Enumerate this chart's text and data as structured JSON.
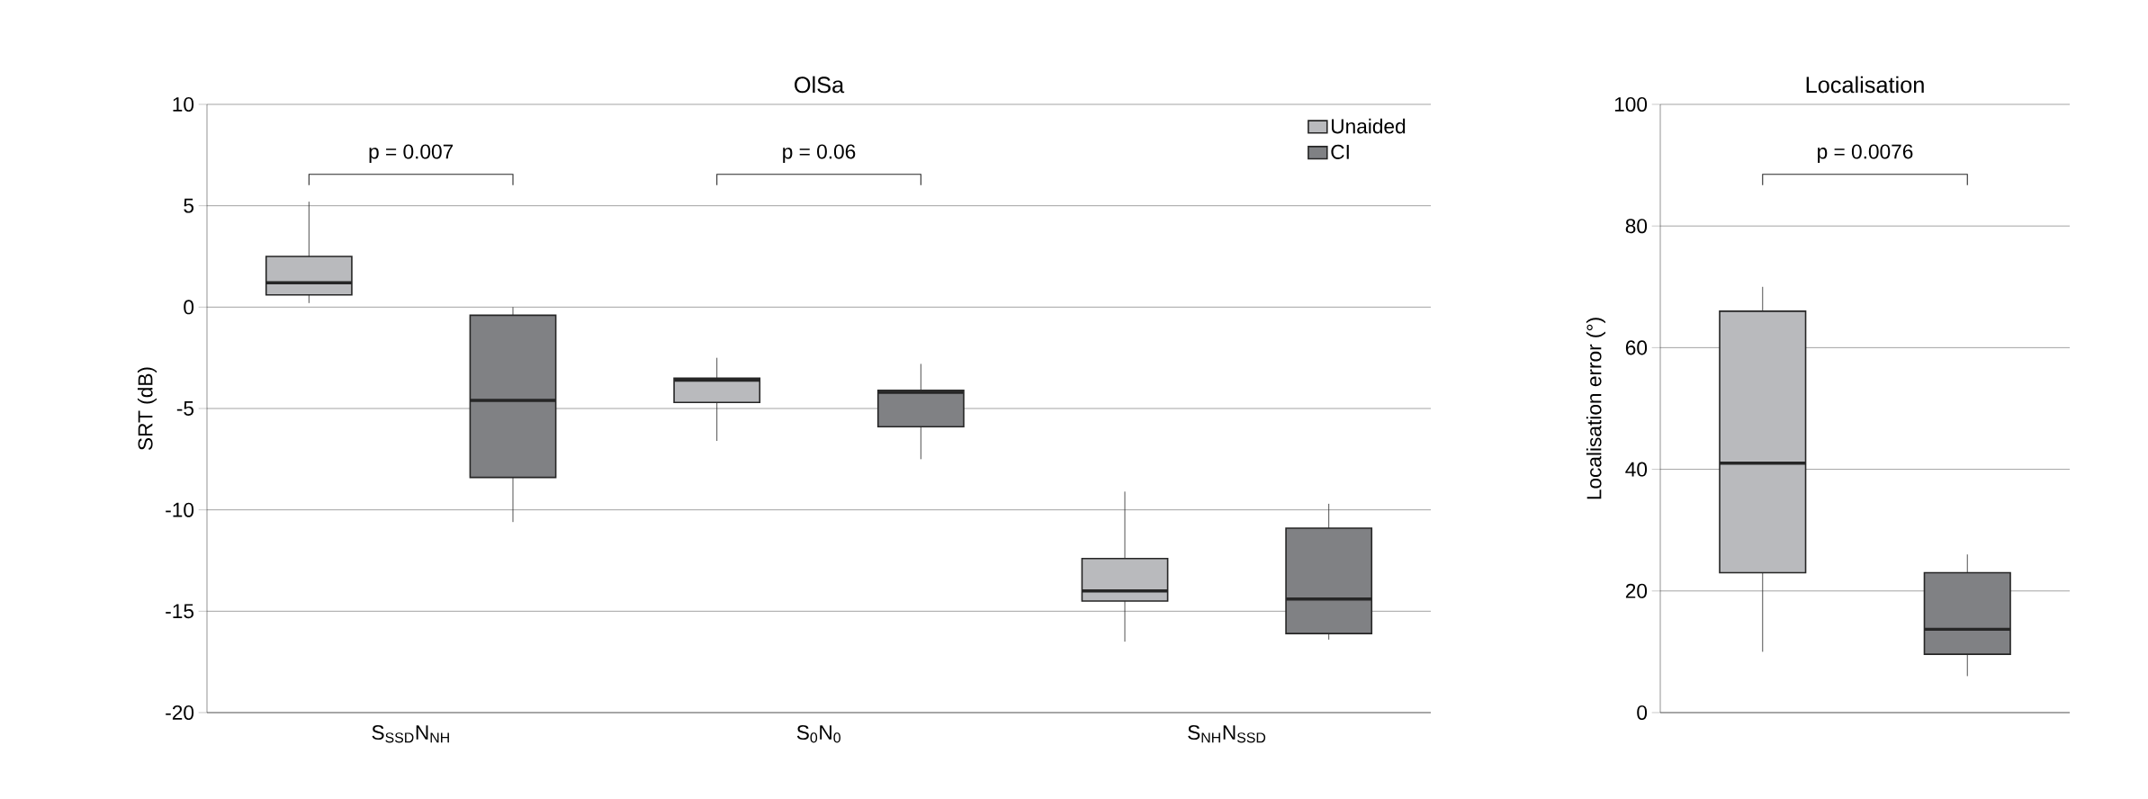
{
  "chart_data": [
    {
      "type": "box",
      "title": "OlSa",
      "ylabel": "SRT (dB)",
      "categories": [
        "S$_{SSD}$N$_{NH}$",
        "S$_{0}$N$_{0}$",
        "S$_{NH}$N$_{SSD}$"
      ],
      "series": [
        {
          "name": "Unaided",
          "color": "#b9babd",
          "boxes": [
            {
              "low": 0.2,
              "q1": 0.6,
              "median": 1.2,
              "q3": 2.5,
              "high": 5.2
            },
            {
              "low": -6.6,
              "q1": -4.7,
              "median": -3.6,
              "q3": -3.5,
              "high": -2.5
            },
            {
              "low": -16.5,
              "q1": -14.5,
              "median": -14,
              "q3": -12.4,
              "high": -9.1
            }
          ]
        },
        {
          "name": "CI",
          "color": "#808184",
          "boxes": [
            {
              "low": -10.6,
              "q1": -8.4,
              "median": -4.6,
              "q3": -0.4,
              "high": 0
            },
            {
              "low": -7.5,
              "q1": -5.9,
              "median": -4.2,
              "q3": -4.1,
              "high": -2.8
            },
            {
              "low": -16.4,
              "q1": -16.1,
              "median": -14.4,
              "q3": -10.9,
              "high": -9.7
            }
          ]
        }
      ],
      "ylim": [
        -20,
        10
      ],
      "yticks": [
        -20,
        -15,
        -10,
        -5,
        0,
        5,
        10
      ],
      "grid": "y",
      "legend": "top right",
      "annotations": [
        "p = 0.007",
        "p = 0.06"
      ]
    },
    {
      "type": "box",
      "title": "Localisation",
      "ylabel": "Localisation error (°)",
      "categories": [
        null
      ],
      "series": [
        {
          "color": "#b9babd",
          "boxes": [
            {
              "low": 10,
              "q1": 23,
              "median": 41,
              "q3": 66,
              "high": 70
            }
          ]
        },
        {
          "color": "#808184",
          "boxes": [
            {
              "low": 6,
              "q1": 9.6,
              "median": 13.7,
              "q3": 23,
              "high": 26
            }
          ]
        }
      ],
      "ylim": [
        0,
        100
      ],
      "yticks": [
        0,
        20,
        40,
        60,
        80,
        100
      ],
      "grid": "y",
      "tick_labels": "y",
      "annotations": [
        "p = 0.0076"
      ]
    }
  ]
}
